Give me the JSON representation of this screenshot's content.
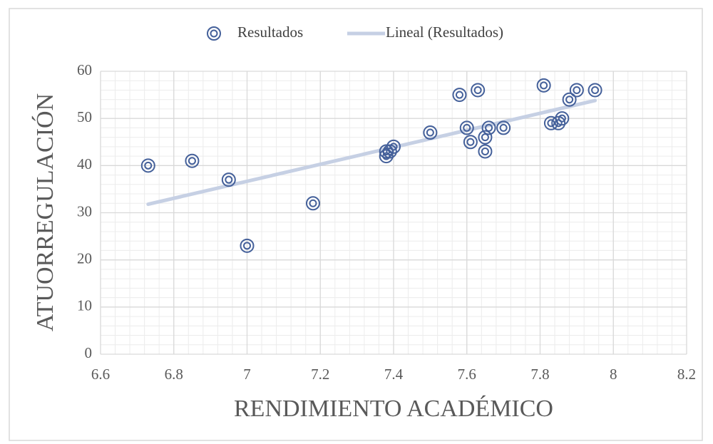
{
  "chart_data": {
    "type": "scatter",
    "xlabel": "RENDIMIENTO ACADÉMICO",
    "ylabel": "ATUORREGULACIÓN",
    "series": [
      {
        "name": "Resultados",
        "color": "#44609a",
        "x": [
          6.73,
          6.85,
          6.95,
          7.0,
          7.18,
          7.38,
          7.38,
          7.39,
          7.4,
          7.5,
          7.58,
          7.6,
          7.61,
          7.63,
          7.65,
          7.65,
          7.66,
          7.7,
          7.81,
          7.83,
          7.85,
          7.86,
          7.88,
          7.9,
          7.95
        ],
        "values": [
          40,
          41,
          37,
          23,
          32,
          43,
          42,
          43,
          44,
          47,
          55,
          48,
          45,
          56,
          46,
          43,
          48,
          48,
          57,
          49,
          49,
          50,
          54,
          56,
          56
        ]
      }
    ],
    "trendline": {
      "name": "Lineal (Resultados)",
      "color": "#c6d0e4",
      "x": [
        6.73,
        7.95
      ],
      "values": [
        31.8,
        53.8
      ]
    },
    "xlim": [
      6.6,
      8.2
    ],
    "xticks": [
      6.6,
      6.8,
      7,
      7.2,
      7.4,
      7.6,
      7.8,
      8,
      8.2
    ],
    "ylim": [
      0,
      60
    ],
    "yticks": [
      0,
      10,
      20,
      30,
      40,
      50,
      60
    ],
    "grid": true,
    "x_minor_step": 0.04,
    "y_minor_step": 2,
    "legend": "top"
  }
}
